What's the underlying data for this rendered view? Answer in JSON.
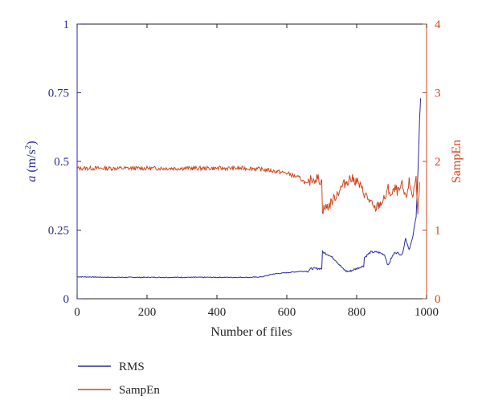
{
  "chart_data": {
    "type": "line",
    "xlabel": "Number of files",
    "ylabel_left": {
      "italic": "a",
      "unit_prefix": " (m/s",
      "unit_sup": "2",
      "unit_suffix": ")"
    },
    "ylabel_right": "SampEn",
    "xlim": [
      0,
      1000
    ],
    "ylim_left": [
      0,
      1
    ],
    "ylim_right": [
      0,
      4
    ],
    "xticks": [
      "0",
      "200",
      "400",
      "600",
      "800",
      "1000"
    ],
    "yticks_left": [
      "0",
      "0.25",
      "0.5",
      "0.75",
      "1"
    ],
    "yticks_right": [
      "0",
      "1",
      "2",
      "3",
      "4"
    ],
    "grid": false,
    "legend_position": "bottom-left",
    "colors": {
      "rms": "#2b2b9a",
      "sampen": "#d2451e",
      "axis": "#222222"
    },
    "series": [
      {
        "name": "RMS",
        "axis": "left",
        "x": [
          0,
          100,
          200,
          300,
          400,
          500,
          530,
          560,
          600,
          640,
          660,
          670,
          690,
          700,
          702,
          720,
          740,
          760,
          770,
          780,
          800,
          820,
          822,
          840,
          860,
          880,
          890,
          900,
          910,
          930,
          940,
          950,
          960,
          970,
          975,
          980,
          983
        ],
        "y": [
          0.08,
          0.078,
          0.078,
          0.078,
          0.078,
          0.078,
          0.08,
          0.09,
          0.095,
          0.1,
          0.1,
          0.11,
          0.11,
          0.11,
          0.17,
          0.16,
          0.14,
          0.11,
          0.1,
          0.1,
          0.11,
          0.12,
          0.15,
          0.17,
          0.17,
          0.16,
          0.12,
          0.15,
          0.17,
          0.16,
          0.22,
          0.18,
          0.22,
          0.3,
          0.45,
          0.65,
          0.73
        ]
      },
      {
        "name": "SampEn",
        "axis": "right",
        "x": [
          0,
          100,
          200,
          300,
          400,
          500,
          550,
          600,
          640,
          660,
          670,
          690,
          700,
          702,
          720,
          740,
          760,
          780,
          800,
          820,
          840,
          850,
          860,
          880,
          890,
          900,
          910,
          920,
          930,
          940,
          950,
          960,
          970,
          975,
          980
        ],
        "y": [
          1.9,
          1.9,
          1.9,
          1.9,
          1.9,
          1.9,
          1.87,
          1.83,
          1.75,
          1.65,
          1.75,
          1.75,
          1.7,
          1.3,
          1.35,
          1.5,
          1.65,
          1.75,
          1.72,
          1.55,
          1.4,
          1.3,
          1.35,
          1.45,
          1.6,
          1.5,
          1.6,
          1.55,
          1.65,
          1.45,
          1.7,
          1.5,
          1.75,
          1.3,
          1.7
        ]
      }
    ]
  }
}
